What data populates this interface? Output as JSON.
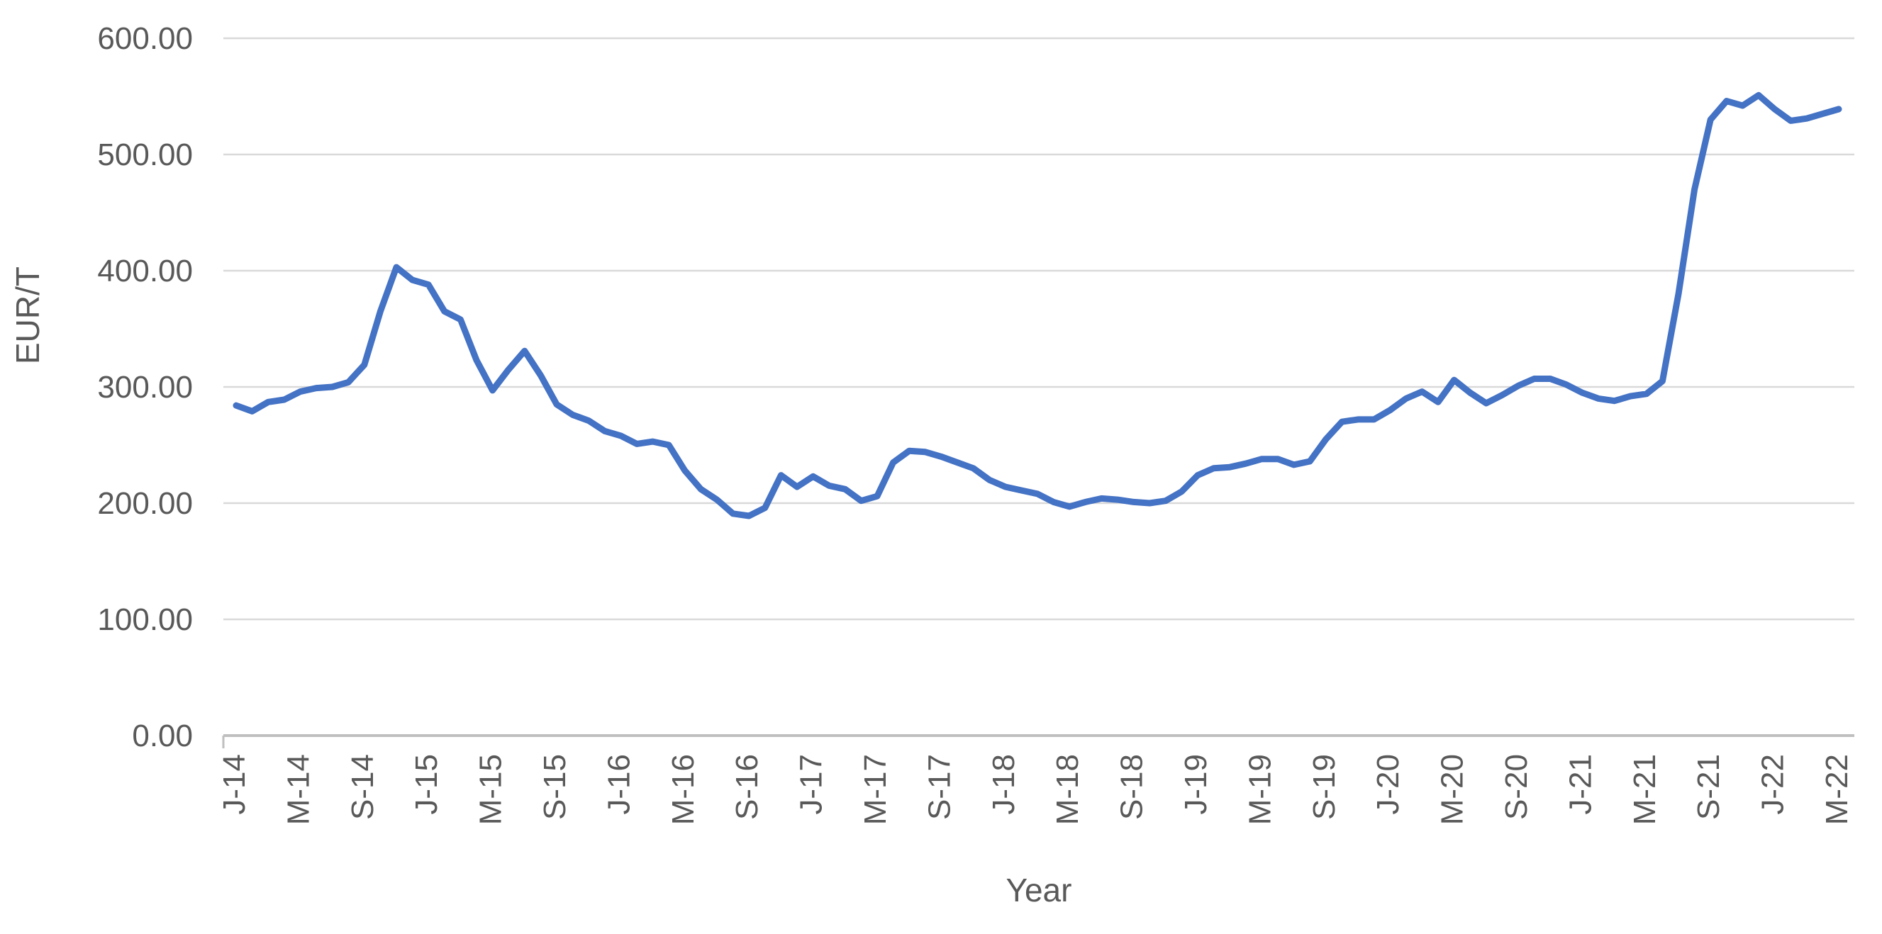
{
  "chart_data": {
    "type": "line",
    "xlabel": "Year",
    "ylabel": "EUR/T",
    "x_tick_labels": [
      "J-14",
      "M-14",
      "S-14",
      "J-15",
      "M-15",
      "S-15",
      "J-16",
      "M-16",
      "S-16",
      "J-17",
      "M-17",
      "S-17",
      "J-18",
      "M-18",
      "S-18",
      "J-19",
      "M-19",
      "S-19",
      "J-20",
      "M-20",
      "S-20",
      "J-21",
      "M-21",
      "S-21",
      "J-22",
      "M-22"
    ],
    "x_tick_every_n_points": 4,
    "y_tick_labels": [
      "0.00",
      "100.00",
      "200.00",
      "300.00",
      "400.00",
      "500.00",
      "600.00"
    ],
    "ylim": [
      0,
      600
    ],
    "grid": true,
    "legend": false,
    "values": [
      284,
      279,
      287,
      289,
      296,
      299,
      300,
      304,
      319,
      365,
      403,
      392,
      388,
      365,
      358,
      323,
      297,
      315,
      331,
      310,
      285,
      276,
      271,
      262,
      258,
      251,
      253,
      250,
      228,
      212,
      203,
      191,
      189,
      196,
      224,
      214,
      223,
      215,
      212,
      202,
      206,
      235,
      245,
      244,
      240,
      235,
      230,
      220,
      214,
      211,
      208,
      201,
      197,
      201,
      204,
      203,
      201,
      200,
      202,
      210,
      224,
      230,
      231,
      234,
      238,
      238,
      233,
      236,
      255,
      270,
      272,
      272,
      280,
      290,
      296,
      287,
      306,
      295,
      286,
      293,
      301,
      307,
      307,
      302,
      295,
      290,
      288,
      292,
      294,
      305,
      380,
      470,
      530,
      546,
      542,
      551,
      539,
      529,
      531,
      535,
      539
    ],
    "line_color": "#4472C4",
    "grid_color": "#D9D9D9",
    "axis_line_color": "#BFBFBF",
    "label_color": "#595959",
    "background": "#FFFFFF"
  }
}
